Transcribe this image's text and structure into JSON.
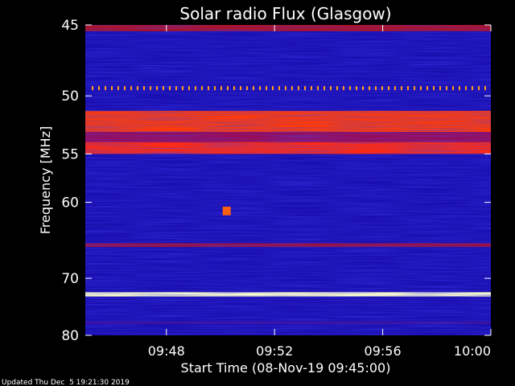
{
  "chart_data": {
    "type": "heatmap",
    "title": "Solar radio Flux (Glasgow)",
    "xlabel": "Start Time (08-Nov-19 09:45:00)",
    "ylabel": "Frequency [MHz]",
    "x_ticks": [
      "09:48",
      "09:52",
      "09:56",
      "10:00"
    ],
    "x_tick_minutes": [
      48,
      52,
      56,
      60
    ],
    "xlim_minutes": [
      45,
      60
    ],
    "y_ticks": [
      45,
      50,
      55,
      60,
      70,
      80
    ],
    "ylim": [
      45,
      80
    ],
    "y_scale": "reciprocal",
    "features": [
      {
        "kind": "band",
        "freq_mhz": [
          51.2,
          53.0
        ],
        "color": "#ff3a08"
      },
      {
        "kind": "band",
        "freq_mhz": [
          53.0,
          53.9
        ],
        "color": "#9a0b55"
      },
      {
        "kind": "band",
        "freq_mhz": [
          53.9,
          55.0
        ],
        "color": "#ff2a10"
      },
      {
        "kind": "band",
        "freq_mhz": [
          65.0,
          65.5
        ],
        "color": "#9a1040"
      },
      {
        "kind": "band",
        "freq_mhz": [
          72.2,
          72.9
        ],
        "color": "#ffffcc"
      },
      {
        "kind": "band",
        "freq_mhz": [
          45.0,
          45.4
        ],
        "color": "#b01020"
      },
      {
        "kind": "band",
        "freq_mhz": [
          77.3,
          77.8
        ],
        "color": "#3a0d9a"
      },
      {
        "kind": "dotted_line",
        "freq_mhz": 49.4,
        "color": "#ff9a20"
      },
      {
        "kind": "burst",
        "time_min": 50.2,
        "freq_mhz": [
          60.5,
          61.5
        ],
        "color": "#ff6010"
      }
    ]
  },
  "footer": {
    "updated": "Updated Thu Dec  5 19:21:30 2019"
  }
}
